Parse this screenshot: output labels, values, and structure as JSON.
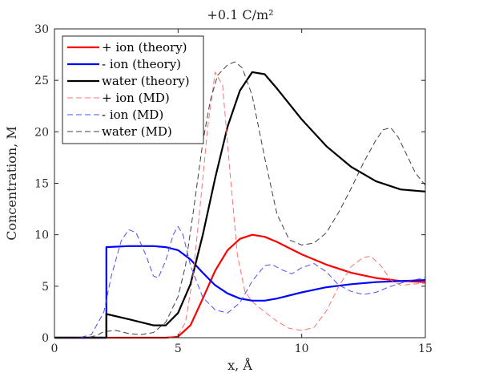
{
  "chart_data": {
    "type": "line",
    "title": "+0.1 C/m²",
    "xlabel": "x, Å",
    "ylabel": "Concentration, M",
    "xlim": [
      0,
      15
    ],
    "ylim": [
      0,
      30
    ],
    "xticks": [
      0,
      5,
      10,
      15
    ],
    "yticks": [
      0,
      5,
      10,
      15,
      20,
      25,
      30
    ],
    "grid": false,
    "legend_position": "top-left",
    "series": [
      {
        "name": "+ ion (theory)",
        "color": "#ff0000",
        "style": "solid",
        "x": [
          0,
          2.1,
          4.5,
          5.0,
          5.5,
          6.0,
          6.5,
          7.0,
          7.5,
          8.0,
          8.5,
          9.0,
          9.5,
          10.0,
          11.0,
          12.0,
          13.0,
          14.0,
          15.0
        ],
        "y": [
          0,
          0,
          0,
          0.1,
          1.2,
          3.8,
          6.5,
          8.5,
          9.6,
          10.0,
          9.8,
          9.3,
          8.7,
          8.1,
          7.1,
          6.3,
          5.8,
          5.5,
          5.4
        ]
      },
      {
        "name": "- ion (theory)",
        "color": "#0000ff",
        "style": "solid",
        "x": [
          0,
          2.1,
          2.1,
          3.0,
          4.0,
          4.5,
          5.0,
          5.5,
          6.0,
          6.5,
          7.0,
          7.5,
          8.0,
          8.5,
          9.0,
          10.0,
          11.0,
          12.0,
          13.0,
          14.0,
          15.0
        ],
        "y": [
          0,
          0,
          8.8,
          8.9,
          8.9,
          8.8,
          8.5,
          7.6,
          6.3,
          5.1,
          4.3,
          3.8,
          3.6,
          3.6,
          3.8,
          4.4,
          4.9,
          5.2,
          5.4,
          5.5,
          5.6
        ]
      },
      {
        "name": "water (theory)",
        "color": "#000000",
        "style": "solid",
        "x": [
          0,
          2.1,
          2.1,
          3.0,
          4.0,
          4.5,
          5.0,
          5.5,
          6.0,
          6.5,
          7.0,
          7.5,
          8.0,
          8.5,
          9.0,
          10.0,
          11.0,
          12.0,
          13.0,
          14.0,
          15.0
        ],
        "y": [
          0,
          0,
          2.3,
          1.8,
          1.2,
          1.2,
          2.4,
          5.2,
          10.0,
          15.5,
          20.5,
          24.0,
          25.8,
          25.6,
          24.2,
          21.2,
          18.6,
          16.6,
          15.2,
          14.4,
          14.2
        ]
      },
      {
        "name": "+ ion (MD)",
        "color": "#ff7070",
        "style": "dashed",
        "x": [
          0,
          4.5,
          5.0,
          5.3,
          5.6,
          5.9,
          6.2,
          6.5,
          6.8,
          7.1,
          7.4,
          7.7,
          8.0,
          8.5,
          9.0,
          9.5,
          10.0,
          10.5,
          11.0,
          11.5,
          12.0,
          12.5,
          12.8,
          13.2,
          13.6,
          14.0,
          14.5,
          15.0
        ],
        "y": [
          0,
          0,
          0.2,
          1.5,
          6.0,
          13.0,
          20.5,
          25.8,
          24.5,
          16.0,
          8.0,
          4.5,
          3.5,
          2.5,
          1.6,
          0.9,
          0.7,
          1.0,
          2.6,
          5.0,
          6.9,
          7.8,
          7.9,
          7.0,
          5.6,
          5.1,
          5.2,
          5.3
        ]
      },
      {
        "name": "- ion (MD)",
        "color": "#4c4cff",
        "style": "dashed",
        "x": [
          0,
          1.0,
          1.5,
          2.0,
          2.3,
          2.7,
          3.0,
          3.3,
          3.7,
          4.0,
          4.2,
          4.5,
          4.8,
          5.0,
          5.2,
          5.5,
          6.0,
          6.5,
          7.0,
          7.5,
          8.0,
          8.5,
          8.8,
          9.2,
          9.6,
          10.0,
          10.5,
          11.0,
          11.5,
          12.0,
          12.5,
          13.0,
          13.5,
          14.0,
          14.5,
          15.0
        ],
        "y": [
          0,
          0,
          0.3,
          2.5,
          6.0,
          9.4,
          10.5,
          10.2,
          8.0,
          6.0,
          5.8,
          7.5,
          10.0,
          10.8,
          10.0,
          7.0,
          3.9,
          2.7,
          2.4,
          3.4,
          5.5,
          7.0,
          7.1,
          6.6,
          6.2,
          6.8,
          7.2,
          6.4,
          5.1,
          4.5,
          4.2,
          4.4,
          4.9,
          5.3,
          5.6,
          5.8
        ]
      },
      {
        "name": "water (MD)",
        "color": "#404040",
        "style": "dashed",
        "x": [
          0,
          1.3,
          1.7,
          2.0,
          2.5,
          3.0,
          3.5,
          4.0,
          4.5,
          5.0,
          5.3,
          5.6,
          6.0,
          6.3,
          6.6,
          7.0,
          7.3,
          7.6,
          8.0,
          8.5,
          9.0,
          9.5,
          10.0,
          10.5,
          11.0,
          11.5,
          12.0,
          12.5,
          13.0,
          13.3,
          13.6,
          13.9,
          14.2,
          14.6,
          15.0
        ],
        "y": [
          0,
          0,
          0.2,
          0.6,
          0.7,
          0.4,
          0.3,
          0.5,
          1.5,
          4.0,
          7.0,
          12.0,
          19.0,
          23.0,
          25.5,
          26.5,
          26.8,
          26.2,
          23.5,
          17.5,
          12.0,
          9.5,
          9.0,
          9.2,
          10.2,
          12.2,
          14.5,
          17.0,
          19.2,
          20.2,
          20.4,
          19.5,
          18.0,
          16.0,
          14.8
        ]
      }
    ]
  }
}
